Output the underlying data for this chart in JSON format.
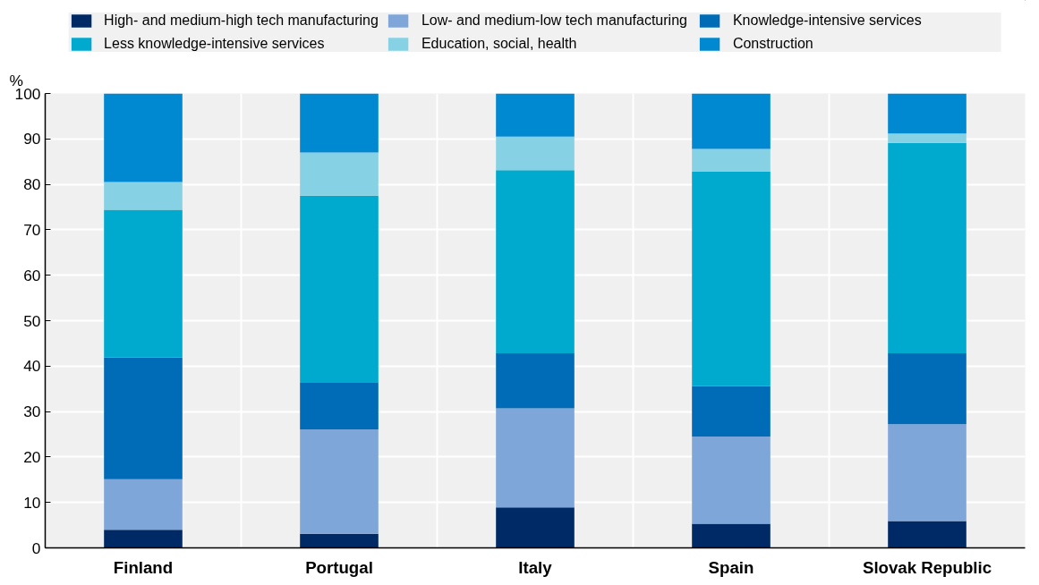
{
  "chart_data": {
    "type": "bar",
    "stacked": true,
    "ylabel": "%",
    "categories": [
      "Finland",
      "Portugal",
      "Italy",
      "Spain",
      "Slovak Republic"
    ],
    "ylim": [
      0,
      100
    ],
    "yticks": [
      0,
      10,
      20,
      30,
      40,
      50,
      60,
      70,
      80,
      90,
      100
    ],
    "grid": true,
    "legend": "top",
    "series": [
      {
        "name": "High- and medium-high tech manufacturing",
        "color": "#002a66",
        "values": [
          4.0,
          3.1,
          8.9,
          5.3,
          5.9
        ]
      },
      {
        "name": "Low- and medium-low tech manufacturing",
        "color": "#7fa6d9",
        "values": [
          11.1,
          23.0,
          21.8,
          19.2,
          21.3
        ]
      },
      {
        "name": "Knowledge-intensive services",
        "color": "#006bb6",
        "values": [
          26.8,
          10.2,
          12.1,
          11.1,
          15.6
        ]
      },
      {
        "name": "Less knowledge-intensive services",
        "color": "#00a9ce",
        "values": [
          32.5,
          41.2,
          40.3,
          47.2,
          46.3
        ]
      },
      {
        "name": "Education, social, health",
        "color": "#86d1e4",
        "values": [
          6.1,
          9.5,
          7.4,
          5.0,
          2.1
        ]
      },
      {
        "name": "Construction",
        "color": "#0088d1",
        "values": [
          19.5,
          13.0,
          9.5,
          12.2,
          8.8
        ]
      }
    ]
  }
}
